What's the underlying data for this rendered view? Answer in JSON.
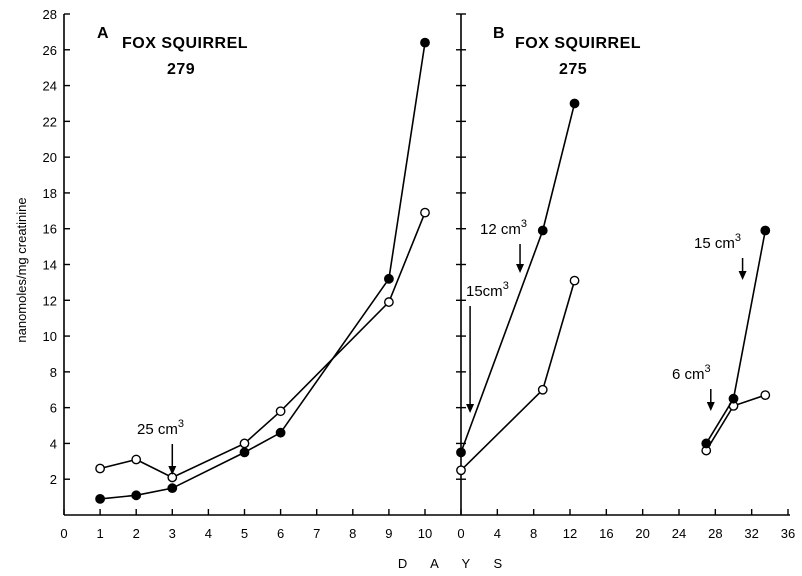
{
  "chart_data": [
    {
      "type": "line",
      "panel_label": "A",
      "title": "FOX SQUIRREL",
      "subtitle": "279",
      "ylabel": "nanomoles/mg creatinine",
      "xlabel": "D A Y S",
      "xlim": [
        0,
        10
      ],
      "ylim": [
        0,
        28
      ],
      "xticks": [
        "0",
        "1",
        "2",
        "3",
        "4",
        "5",
        "6",
        "7",
        "8",
        "9",
        "10"
      ],
      "yticks": [
        "2",
        "4",
        "6",
        "8",
        "10",
        "12",
        "14",
        "16",
        "18",
        "20",
        "22",
        "24",
        "26",
        "28"
      ],
      "grid": false,
      "series": [
        {
          "marker": "open-circle",
          "x": [
            1,
            2,
            3,
            5,
            6,
            9,
            10
          ],
          "y": [
            2.6,
            3.1,
            2.1,
            4.0,
            5.8,
            11.9,
            16.9
          ]
        },
        {
          "marker": "filled-circle",
          "x": [
            1,
            2,
            3,
            5,
            6,
            9,
            10
          ],
          "y": [
            0.9,
            1.1,
            1.5,
            3.5,
            4.6,
            13.2,
            26.4
          ]
        }
      ],
      "annotations": [
        {
          "text": "25 cm",
          "sup": "3",
          "x": 3
        }
      ]
    },
    {
      "type": "line",
      "panel_label": "B",
      "title": "FOX SQUIRREL",
      "subtitle": "275",
      "xlim": [
        0,
        36
      ],
      "ylim": [
        0,
        28
      ],
      "xticks": [
        "0",
        "4",
        "8",
        "12",
        "16",
        "20",
        "24",
        "28",
        "32",
        "36"
      ],
      "grid": false,
      "series": [
        {
          "marker": "open-circle",
          "x": [
            0,
            9,
            12.5
          ],
          "y": [
            2.5,
            7.0,
            13.1
          ]
        },
        {
          "marker": "filled-circle",
          "x": [
            0,
            9,
            12.5
          ],
          "y": [
            3.5,
            15.9,
            23.0
          ]
        },
        {
          "marker": "open-circle",
          "x": [
            27,
            30,
            33.5
          ],
          "y": [
            3.6,
            6.1,
            6.7
          ]
        },
        {
          "marker": "filled-circle",
          "x": [
            27,
            30,
            33.5
          ],
          "y": [
            4.0,
            6.5,
            15.9
          ]
        }
      ],
      "annotations": [
        {
          "text": "12 cm",
          "sup": "3",
          "x": 6.5
        },
        {
          "text": "15cm",
          "sup": "3",
          "x": 1
        },
        {
          "text": "15 cm",
          "sup": "3",
          "x": 31
        },
        {
          "text": "6 cm",
          "sup": "3",
          "x": 27.5
        }
      ]
    }
  ]
}
